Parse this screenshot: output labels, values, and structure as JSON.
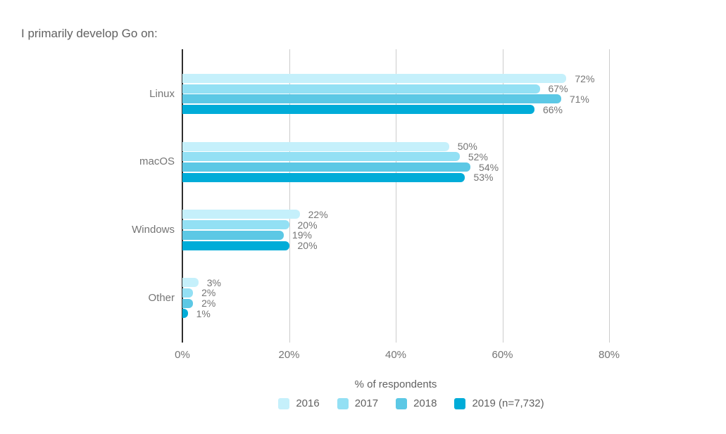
{
  "chart_data": {
    "type": "bar",
    "orientation": "horizontal",
    "title": "I primarily develop Go on:",
    "xlabel": "% of respondents",
    "categories": [
      "Linux",
      "macOS",
      "Windows",
      "Other"
    ],
    "series": [
      {
        "name": "2016",
        "color": "#c5f0fb",
        "values": [
          72,
          50,
          22,
          3
        ],
        "labels": [
          "72%",
          "50%",
          "22%",
          "3%"
        ]
      },
      {
        "name": "2017",
        "color": "#93e0f4",
        "values": [
          67,
          52,
          20,
          2
        ],
        "labels": [
          "67%",
          "52%",
          "20%",
          "2%"
        ]
      },
      {
        "name": "2018",
        "color": "#5cc8e5",
        "values": [
          71,
          54,
          19,
          2
        ],
        "labels": [
          "71%",
          "54%",
          "19%",
          "2%"
        ]
      },
      {
        "name": "2019 (n=7,732)",
        "color": "#00acd8",
        "values": [
          66,
          53,
          20,
          1
        ],
        "labels": [
          "66%",
          "53%",
          "20%",
          "1%"
        ]
      }
    ],
    "xlim": [
      0,
      80
    ],
    "xticks": [
      {
        "value": 0,
        "label": "0%"
      },
      {
        "value": 20,
        "label": "20%"
      },
      {
        "value": 40,
        "label": "40%"
      },
      {
        "value": 60,
        "label": "60%"
      },
      {
        "value": 80,
        "label": "80%"
      }
    ],
    "grid": true,
    "legend_position": "bottom"
  },
  "styles": {
    "background": "#ffffff",
    "axis_color": "#2e2e2e",
    "gridline_color": "#cccccc",
    "text_color": "#757575",
    "title_color": "#616161"
  }
}
